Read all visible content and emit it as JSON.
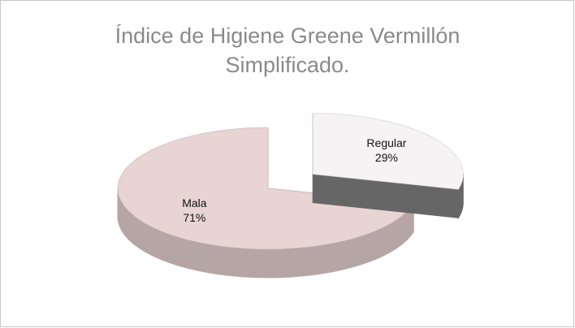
{
  "chart_data": {
    "type": "pie",
    "title": "Índice de Higiene Greene Vermillón Simplificado.",
    "categories": [
      "Mala",
      "Regular"
    ],
    "values": [
      71,
      29
    ],
    "value_labels": [
      "71%",
      "29%"
    ],
    "colors": [
      "#e9d4d4",
      "#f5f3f3"
    ],
    "exploded": "Regular"
  }
}
